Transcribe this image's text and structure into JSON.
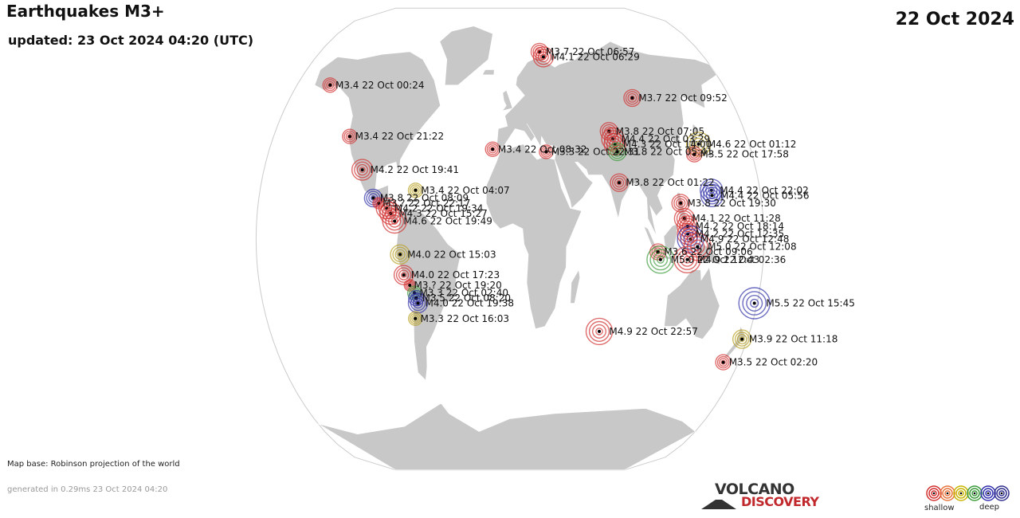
{
  "header": {
    "title": "Earthquakes M3+",
    "updated": "updated: 23 Oct 2024 04:20 (UTC)",
    "date": "22 Oct 2024"
  },
  "footer": {
    "map_base": "Map base: Robinson projection of the world",
    "generated": "generated in 0.29ms 23 Oct 2024 04:20"
  },
  "logo": {
    "top": "VOLCANO",
    "bottom": "DISCOVERY"
  },
  "legend": {
    "shallow_label": "shallow",
    "deep_label": "deep",
    "depth_colors": [
      "#d32f2f",
      "#e8743b",
      "#c8b400",
      "#3a9b3a",
      "#3030b0",
      "#303090"
    ]
  },
  "colors": {
    "ocean": "#ffffff",
    "land": "#c8c8c8",
    "border": "#ffffff",
    "shallow": "#d32f2f",
    "medium": "#b8a020",
    "green": "#3a9b3a",
    "deep": "#3030a8"
  },
  "quakes": [
    {
      "lon": -152,
      "lat": 60,
      "depth": "shallow",
      "label": "M3.4 22 Oct 00:24"
    },
    {
      "lon": 28,
      "lat": 73,
      "depth": "shallow",
      "label": "M3.7 22 Oct 06:57"
    },
    {
      "lon": 31,
      "lat": 71,
      "depth": "shallow",
      "label": "M4.1 22 Oct 06:29"
    },
    {
      "lon": 100,
      "lat": 55,
      "depth": "shallow",
      "label": "M3.7 22 Oct 09:52"
    },
    {
      "lon": 76,
      "lat": 42,
      "depth": "shallow",
      "label": "M3.8 22 Oct 07:05"
    },
    {
      "lon": 78,
      "lat": 39,
      "depth": "shallow",
      "label": "M4.4 22 Oct 03:29"
    },
    {
      "lon": 79,
      "lat": 37,
      "depth": "shallow",
      "label": "M4.3 22 Oct 14:00"
    },
    {
      "lon": 80,
      "lat": 34,
      "depth": "green",
      "label": "M3.8 22 Oct 05:41"
    },
    {
      "lon": -13,
      "lat": 35,
      "depth": "shallow",
      "label": "M3.4 22 Oct 08:32"
    },
    {
      "lon": 27,
      "lat": 34,
      "depth": "shallow",
      "label": "M3.3 22 Oct 22:31"
    },
    {
      "lon": 142,
      "lat": 37,
      "depth": "medium",
      "label": "M4.6 22 Oct 01:12"
    },
    {
      "lon": 137,
      "lat": 33,
      "depth": "shallow",
      "label": "M3.5 22 Oct 17:58"
    },
    {
      "lon": 79,
      "lat": 22,
      "depth": "shallow",
      "label": "M3.8 22 Oct 01:22"
    },
    {
      "lon": 145,
      "lat": 19,
      "depth": "deep",
      "label": "M4.4 22 Oct 22:02"
    },
    {
      "lon": 145,
      "lat": 17,
      "depth": "deep",
      "label": "M4.4 22 Oct 05:56"
    },
    {
      "lon": 122,
      "lat": 14,
      "depth": "shallow",
      "label": "M3.8 22 Oct 19:30"
    },
    {
      "lon": 124,
      "lat": 8,
      "depth": "shallow",
      "label": "M4.1 22 Oct 11:28"
    },
    {
      "lon": 126,
      "lat": 5,
      "depth": "shallow",
      "label": "M4.2 22 Oct 18:14"
    },
    {
      "lon": 126,
      "lat": 2,
      "depth": "shallow",
      "label": "M4.2 22 Oct 12:35"
    },
    {
      "lon": 128,
      "lat": 0,
      "depth": "deep",
      "label": "M4.9 22 Oct 12:48"
    },
    {
      "lon": 105,
      "lat": -5,
      "depth": "shallow",
      "label": "M3.6 22 Oct 09:06"
    },
    {
      "lon": 107,
      "lat": -8,
      "depth": "green",
      "label": "M5.0 22 Oct 12:43"
    },
    {
      "lon": 126,
      "lat": -8,
      "depth": "shallow",
      "label": "M4.9 22 Oct 02:36"
    },
    {
      "lon": 133,
      "lat": -3,
      "depth": "shallow",
      "label": "M5.0 22 Oct 12:08"
    },
    {
      "lon": 67,
      "lat": -36,
      "depth": "shallow",
      "label": "M4.9 22 Oct 22:57"
    },
    {
      "lon": 178,
      "lat": -25,
      "depth": "deep",
      "label": "M5.5 22 Oct 15:45"
    },
    {
      "lon": 176,
      "lat": -39,
      "depth": "medium",
      "label": "M3.9 22 Oct 11:18"
    },
    {
      "lon": 168,
      "lat": -48,
      "depth": "shallow",
      "label": "M3.5 22 Oct 02:20"
    },
    {
      "lon": -122,
      "lat": 40,
      "depth": "shallow",
      "label": "M3.4 22 Oct 21:22"
    },
    {
      "lon": -108,
      "lat": 27,
      "depth": "shallow",
      "label": "M4.2 22 Oct 19:41"
    },
    {
      "lon": -98,
      "lat": 16,
      "depth": "deep",
      "label": "M3.8 22 Oct 08:09"
    },
    {
      "lon": -94,
      "lat": 14,
      "depth": "shallow",
      "label": "M3.? 22 Oct 22:17"
    },
    {
      "lon": -68,
      "lat": 19,
      "depth": "medium",
      "label": "M3.4 22 Oct 04:07"
    },
    {
      "lon": -88,
      "lat": 12,
      "depth": "shallow",
      "label": "M4.2 22 Oct 19:34"
    },
    {
      "lon": -85,
      "lat": 10,
      "depth": "shallow",
      "label": "M4.3 22 Oct 15:27"
    },
    {
      "lon": -82,
      "lat": 7,
      "depth": "shallow",
      "label": "M4.6 22 Oct 19:49"
    },
    {
      "lon": -78,
      "lat": -6,
      "depth": "medium",
      "label": "M4.0 22 Oct 15:03"
    },
    {
      "lon": -76,
      "lat": -14,
      "depth": "shallow",
      "label": "M4.0 22 Oct 17:23"
    },
    {
      "lon": -72,
      "lat": -18,
      "depth": "shallow",
      "label": "M3.? 22 Oct 19:20"
    },
    {
      "lon": -69,
      "lat": -21,
      "depth": "green",
      "label": "M3.3 22 Oct 02:40"
    },
    {
      "lon": -68,
      "lat": -23,
      "depth": "deep",
      "label": "M3.5 22 Oct 08:20"
    },
    {
      "lon": -67,
      "lat": -25,
      "depth": "deep",
      "label": "M4.0 22 Oct 19:38"
    },
    {
      "lon": -70,
      "lat": -31,
      "depth": "medium",
      "label": "M3.3 22 Oct 16:03"
    }
  ]
}
